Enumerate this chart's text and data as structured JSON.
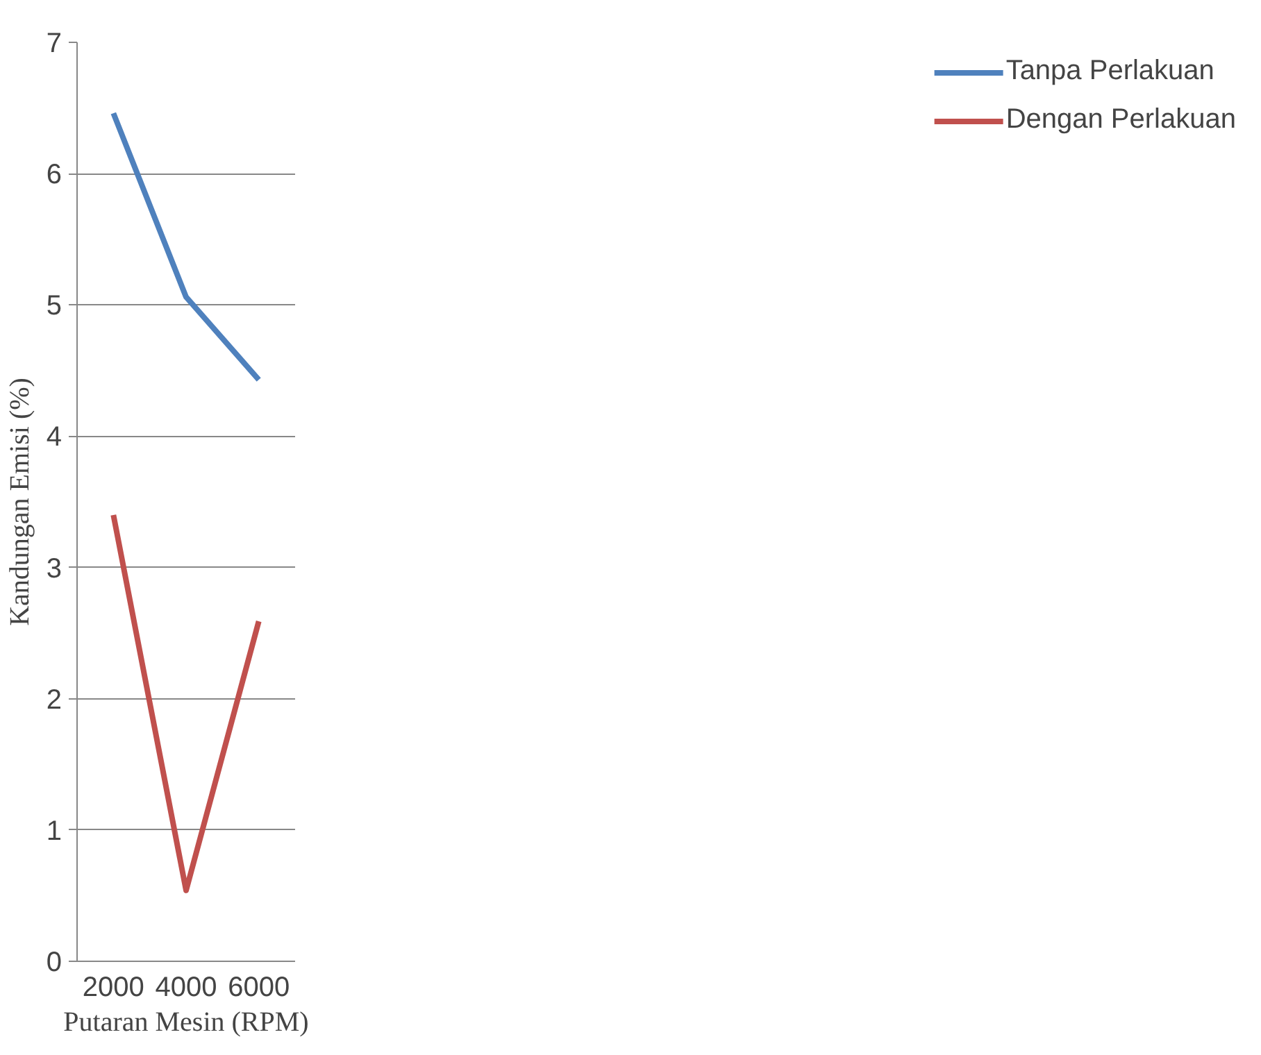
{
  "chart_data": {
    "type": "line",
    "xlabel": "Putaran Mesin (RPM)",
    "ylabel": "Kandungan Emisi (%)",
    "categories": [
      "2000",
      "4000",
      "6000"
    ],
    "series": [
      {
        "name": "Tanpa Perlakuan",
        "color": "#4f81bd",
        "values": [
          6.46,
          5.06,
          4.43
        ]
      },
      {
        "name": "Dengan Perlakuan",
        "color": "#c0504d",
        "values": [
          3.4,
          0.54,
          2.59
        ]
      }
    ],
    "ylim": [
      0,
      7
    ],
    "yticks": [
      0,
      1,
      2,
      3,
      4,
      5,
      6,
      7
    ],
    "grid": "y",
    "legend": "right",
    "marker": "none",
    "line_style": "solid"
  }
}
